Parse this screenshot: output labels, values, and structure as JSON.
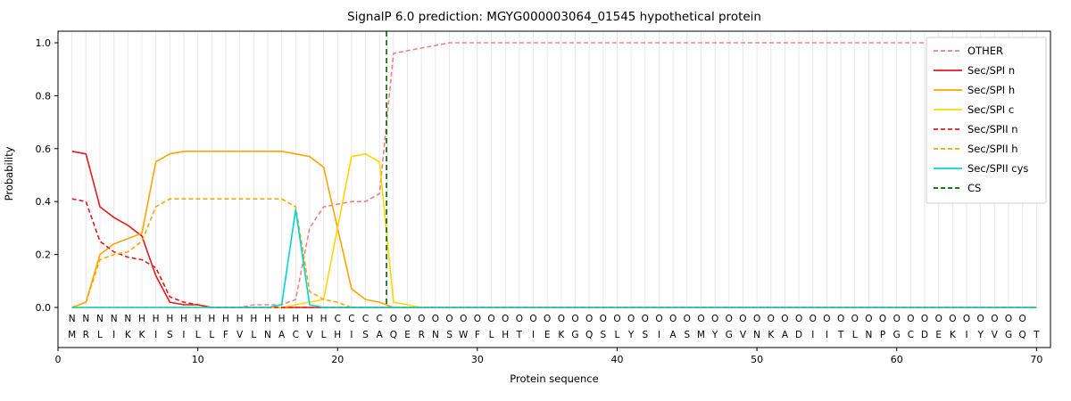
{
  "chart_data": {
    "type": "line",
    "title": "SignalP 6.0 prediction: MGYG000003064_01545 hypothetical protein",
    "xlabel": "Protein sequence",
    "ylabel": "Probability",
    "xlim": [
      0,
      71
    ],
    "ylim": [
      0,
      1.05
    ],
    "xticks": [
      0,
      10,
      20,
      30,
      40,
      50,
      60,
      70
    ],
    "yticks": [
      0.0,
      0.2,
      0.4,
      0.6,
      0.8,
      1.0
    ],
    "grid": "vertical-per-residue",
    "legend_position": "upper right",
    "sequence": "MRLIKKISILLFVLNACVLHISAQERNSWFLHTIEKGQSLYSIASMYGVNKADIITLNPGCDEKIYVGQT",
    "region_labels": "NNNNNHHHHHHHHHHHHHHCCCCOOOOOOOOOOOOOOOOOOOOOOOOOOOOOOOOOOOOOOOOOOOOOO",
    "region_colors": {
      "N": "#e41a1c",
      "H": "#ffa500",
      "C": "#ffd700",
      "O": "#999999"
    },
    "cs_position": 23.5,
    "cs": {
      "name": "CS",
      "color": "#006400",
      "dash": true
    },
    "series": [
      {
        "name": "OTHER",
        "color": "#f08080",
        "dash": true,
        "values": [
          0,
          0,
          0,
          0,
          0,
          0,
          0,
          0,
          0,
          0,
          0,
          0,
          0,
          0.01,
          0.01,
          0.01,
          0.03,
          0.3,
          0.38,
          0.39,
          0.4,
          0.4,
          0.43,
          0.96,
          0.97,
          0.98,
          0.99,
          1,
          1,
          1,
          1,
          1,
          1,
          1,
          1,
          1,
          1,
          1,
          1,
          1,
          1,
          1,
          1,
          1,
          1,
          1,
          1,
          1,
          1,
          1,
          1,
          1,
          1,
          1,
          1,
          1,
          1,
          1,
          1,
          1,
          1,
          1,
          1,
          1,
          1,
          1,
          1,
          1,
          1,
          1
        ]
      },
      {
        "name": "Sec/SPI n",
        "color": "#e41a1c",
        "dash": false,
        "values": [
          0.59,
          0.58,
          0.38,
          0.34,
          0.31,
          0.27,
          0.12,
          0.02,
          0.01,
          0.01,
          0,
          0,
          0,
          0,
          0,
          0,
          0,
          0,
          0,
          0,
          0,
          0,
          0,
          0,
          0,
          0,
          0,
          0,
          0,
          0,
          0,
          0,
          0,
          0,
          0,
          0,
          0,
          0,
          0,
          0,
          0,
          0,
          0,
          0,
          0,
          0,
          0,
          0,
          0,
          0,
          0,
          0,
          0,
          0,
          0,
          0,
          0,
          0,
          0,
          0,
          0,
          0,
          0,
          0,
          0,
          0,
          0,
          0,
          0,
          0
        ]
      },
      {
        "name": "Sec/SPI h",
        "color": "#ffa500",
        "dash": false,
        "values": [
          0,
          0.02,
          0.2,
          0.24,
          0.26,
          0.28,
          0.55,
          0.58,
          0.59,
          0.59,
          0.59,
          0.59,
          0.59,
          0.59,
          0.59,
          0.59,
          0.58,
          0.57,
          0.53,
          0.3,
          0.07,
          0.03,
          0.02,
          0,
          0,
          0,
          0,
          0,
          0,
          0,
          0,
          0,
          0,
          0,
          0,
          0,
          0,
          0,
          0,
          0,
          0,
          0,
          0,
          0,
          0,
          0,
          0,
          0,
          0,
          0,
          0,
          0,
          0,
          0,
          0,
          0,
          0,
          0,
          0,
          0,
          0,
          0,
          0,
          0,
          0,
          0,
          0,
          0,
          0,
          0
        ]
      },
      {
        "name": "Sec/SPI c",
        "color": "#ffd700",
        "dash": false,
        "values": [
          0,
          0,
          0,
          0,
          0,
          0,
          0,
          0,
          0,
          0,
          0,
          0,
          0,
          0,
          0,
          0,
          0.01,
          0.02,
          0.03,
          0.3,
          0.57,
          0.58,
          0.55,
          0.02,
          0.01,
          0,
          0,
          0,
          0,
          0,
          0,
          0,
          0,
          0,
          0,
          0,
          0,
          0,
          0,
          0,
          0,
          0,
          0,
          0,
          0,
          0,
          0,
          0,
          0,
          0,
          0,
          0,
          0,
          0,
          0,
          0,
          0,
          0,
          0,
          0,
          0,
          0,
          0,
          0,
          0,
          0,
          0,
          0,
          0,
          0
        ]
      },
      {
        "name": "Sec/SPII n",
        "color": "#e41a1c",
        "dash": true,
        "values": [
          0.41,
          0.4,
          0.25,
          0.21,
          0.19,
          0.18,
          0.15,
          0.04,
          0.02,
          0.01,
          0,
          0,
          0,
          0,
          0,
          0,
          0,
          0,
          0,
          0,
          0,
          0,
          0,
          0,
          0,
          0,
          0,
          0,
          0,
          0,
          0,
          0,
          0,
          0,
          0,
          0,
          0,
          0,
          0,
          0,
          0,
          0,
          0,
          0,
          0,
          0,
          0,
          0,
          0,
          0,
          0,
          0,
          0,
          0,
          0,
          0,
          0,
          0,
          0,
          0,
          0,
          0,
          0,
          0,
          0,
          0,
          0,
          0,
          0,
          0
        ]
      },
      {
        "name": "Sec/SPII h",
        "color": "#ffa500",
        "dash": true,
        "values": [
          0,
          0.02,
          0.18,
          0.2,
          0.21,
          0.25,
          0.38,
          0.41,
          0.41,
          0.41,
          0.41,
          0.41,
          0.41,
          0.41,
          0.41,
          0.41,
          0.38,
          0.06,
          0.03,
          0.02,
          0,
          0,
          0,
          0,
          0,
          0,
          0,
          0,
          0,
          0,
          0,
          0,
          0,
          0,
          0,
          0,
          0,
          0,
          0,
          0,
          0,
          0,
          0,
          0,
          0,
          0,
          0,
          0,
          0,
          0,
          0,
          0,
          0,
          0,
          0,
          0,
          0,
          0,
          0,
          0,
          0,
          0,
          0,
          0,
          0,
          0,
          0,
          0,
          0,
          0
        ]
      },
      {
        "name": "Sec/SPII cys",
        "color": "#00d5d5",
        "dash": false,
        "values": [
          0,
          0,
          0,
          0,
          0,
          0,
          0,
          0,
          0,
          0,
          0,
          0,
          0,
          0,
          0,
          0.01,
          0.37,
          0.01,
          0,
          0,
          0,
          0,
          0,
          0,
          0,
          0,
          0,
          0,
          0,
          0,
          0,
          0,
          0,
          0,
          0,
          0,
          0,
          0,
          0,
          0,
          0,
          0,
          0,
          0,
          0,
          0,
          0,
          0,
          0,
          0,
          0,
          0,
          0,
          0,
          0,
          0,
          0,
          0,
          0,
          0,
          0,
          0,
          0,
          0,
          0,
          0,
          0,
          0,
          0,
          0
        ]
      }
    ]
  }
}
